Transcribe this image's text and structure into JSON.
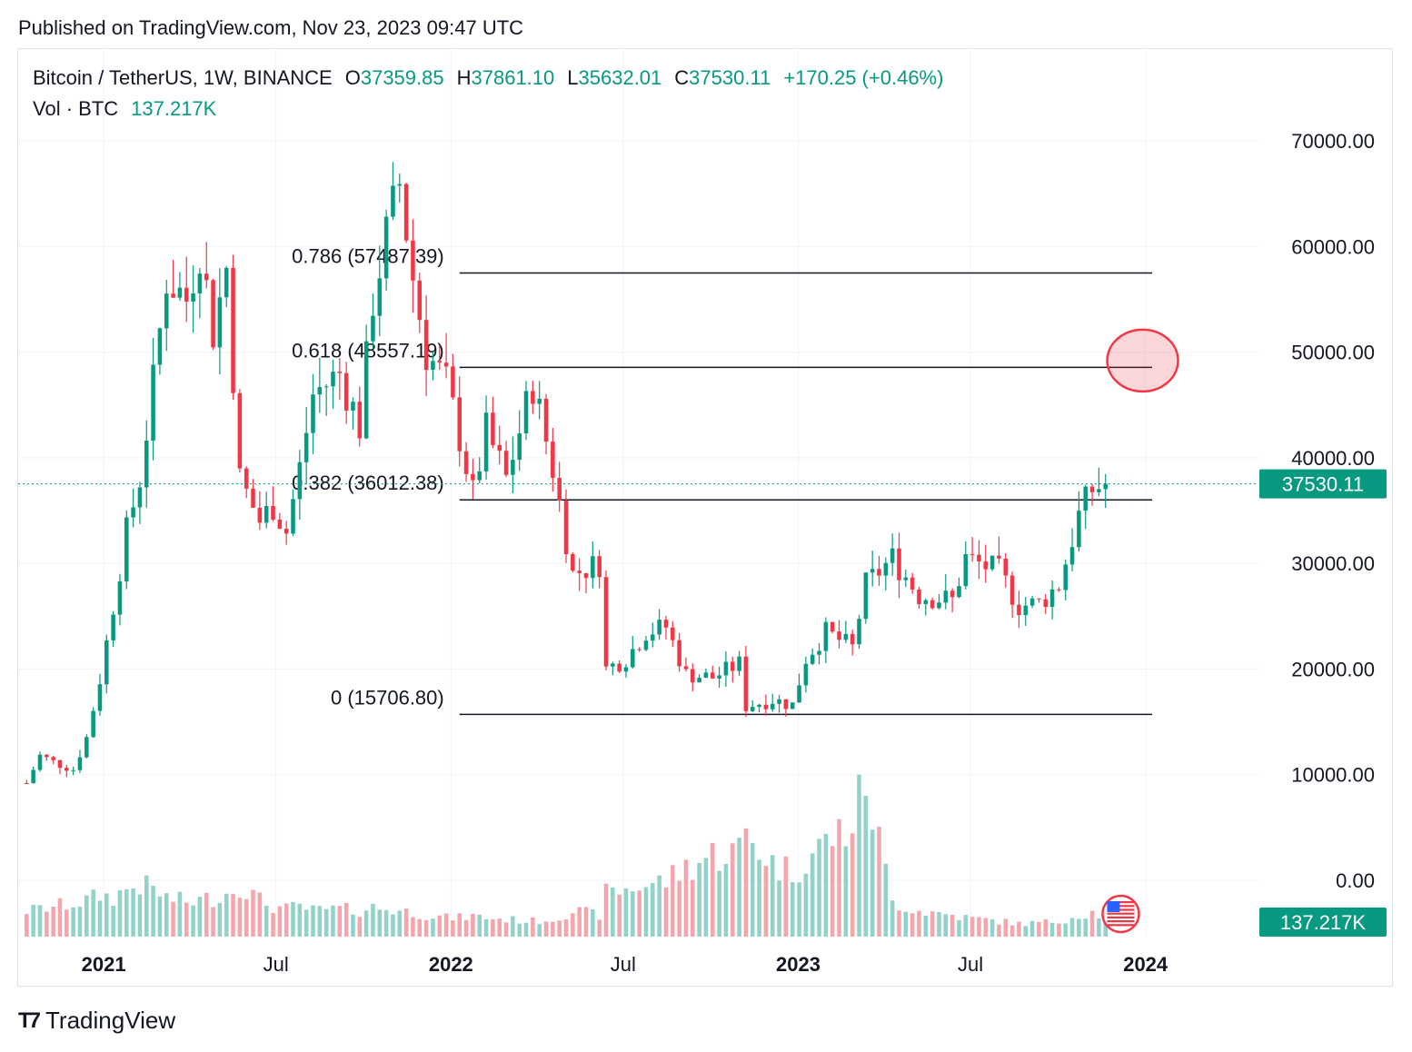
{
  "header": {
    "published": "Published on TradingView.com, Nov 23, 2023 09:47 UTC"
  },
  "legend": {
    "symbol": "Bitcoin / TetherUS, 1W, BINANCE",
    "open_label": "O",
    "open": "37359.85",
    "high_label": "H",
    "high": "37861.10",
    "low_label": "L",
    "low": "35632.01",
    "close_label": "C",
    "close": "37530.11",
    "change": "+170.25 (+0.46%)",
    "vol_label": "Vol · BTC",
    "vol_value": "137.217K"
  },
  "footer": {
    "brand": "TradingView",
    "logo_icon": "tradingview-logo-icon"
  },
  "colors": {
    "up": "#089981",
    "down": "#f23645",
    "up_vol": "#92d2c8",
    "down_vol": "#f5a6ac",
    "grid": "#f0f3fa",
    "last_price": "#089981"
  },
  "chart_data": {
    "type": "candlestick",
    "symbol": "BTCUSDT",
    "interval": "1W",
    "price_axis": {
      "ticks": [
        70000,
        60000,
        50000,
        40000,
        30000,
        20000,
        10000,
        0
      ],
      "tick_labels": [
        "70000.00",
        "60000.00",
        "50000.00",
        "40000.00",
        "30000.00",
        "20000.00",
        "10000.00",
        "0.00"
      ],
      "range": [
        -2400,
        75000
      ]
    },
    "time_axis": {
      "labels": [
        "2021",
        "Jul",
        "2022",
        "Jul",
        "2023",
        "Jul",
        "2024"
      ],
      "bold": [
        "2021",
        "2022",
        "2023",
        "2024"
      ],
      "dates": [
        "2021-01-01",
        "2021-07-01",
        "2022-01-01",
        "2022-07-01",
        "2023-01-01",
        "2023-07-01",
        "2024-01-01"
      ]
    },
    "last_price_label": "37530.11",
    "volume_label": "137.217K",
    "fib_levels": [
      {
        "ratio": "0.786",
        "price": 57487.39,
        "label": "0.786 (57487.39)"
      },
      {
        "ratio": "0.618",
        "price": 48557.19,
        "label": "0.618 (48557.19)"
      },
      {
        "ratio": "0.382",
        "price": 36012.38,
        "label": "0.382 (36012.38)"
      },
      {
        "ratio": "0",
        "price": 15706.8,
        "label": "0 (15706.80)"
      }
    ],
    "fib_range": {
      "start": "2022-01-10",
      "end": "2024-01-08"
    },
    "annotation": {
      "type": "ellipse",
      "price": 49200,
      "date": "2023-12-29",
      "color": "#f23645"
    },
    "event_icon": {
      "name": "us-flag-icon",
      "date": "2023-12-06"
    },
    "anchors": [
      {
        "date": "2020-10-12",
        "price": 9200,
        "vol": 30
      },
      {
        "date": "2020-10-26",
        "price": 11800,
        "vol": 32
      },
      {
        "date": "2020-11-09",
        "price": 11200,
        "vol": 35
      },
      {
        "date": "2020-11-30",
        "price": 10500,
        "vol": 38
      },
      {
        "date": "2020-12-14",
        "price": 13500,
        "vol": 42
      },
      {
        "date": "2020-12-28",
        "price": 19000,
        "vol": 48
      },
      {
        "date": "2021-01-11",
        "price": 26000,
        "vol": 45
      },
      {
        "date": "2021-01-25",
        "price": 33000,
        "vol": 55
      },
      {
        "date": "2021-02-08",
        "price": 38000,
        "vol": 60
      },
      {
        "date": "2021-02-22",
        "price": 47000,
        "vol": 55
      },
      {
        "date": "2021-03-08",
        "price": 57000,
        "vol": 45
      },
      {
        "date": "2021-03-29",
        "price": 55000,
        "vol": 40
      },
      {
        "date": "2021-04-12",
        "price": 60000,
        "vol": 42
      },
      {
        "date": "2021-04-26",
        "price": 52000,
        "vol": 45
      },
      {
        "date": "2021-05-10",
        "price": 58000,
        "vol": 50
      },
      {
        "date": "2021-05-24",
        "price": 38000,
        "vol": 60
      },
      {
        "date": "2021-06-14",
        "price": 34000,
        "vol": 42
      },
      {
        "date": "2021-06-28",
        "price": 35500,
        "vol": 35
      },
      {
        "date": "2021-07-12",
        "price": 33000,
        "vol": 32
      },
      {
        "date": "2021-07-26",
        "price": 39000,
        "vol": 35
      },
      {
        "date": "2021-08-09",
        "price": 46000,
        "vol": 30
      },
      {
        "date": "2021-09-06",
        "price": 48000,
        "vol": 32
      },
      {
        "date": "2021-09-27",
        "price": 43000,
        "vol": 30
      },
      {
        "date": "2021-10-11",
        "price": 55000,
        "vol": 34
      },
      {
        "date": "2021-10-25",
        "price": 61000,
        "vol": 32
      },
      {
        "date": "2021-11-08",
        "price": 66000,
        "vol": 30
      },
      {
        "date": "2021-11-22",
        "price": 57000,
        "vol": 28
      },
      {
        "date": "2021-12-06",
        "price": 50000,
        "vol": 25
      },
      {
        "date": "2021-12-27",
        "price": 47000,
        "vol": 22
      },
      {
        "date": "2022-01-10",
        "price": 42000,
        "vol": 22
      },
      {
        "date": "2022-01-24",
        "price": 36500,
        "vol": 24
      },
      {
        "date": "2022-02-07",
        "price": 42500,
        "vol": 22
      },
      {
        "date": "2022-02-28",
        "price": 38000,
        "vol": 20
      },
      {
        "date": "2022-03-28",
        "price": 47000,
        "vol": 18
      },
      {
        "date": "2022-04-18",
        "price": 39000,
        "vol": 20
      },
      {
        "date": "2022-05-09",
        "price": 29000,
        "vol": 30
      },
      {
        "date": "2022-06-06",
        "price": 30000,
        "vol": 25
      },
      {
        "date": "2022-06-13",
        "price": 20000,
        "vol": 50
      },
      {
        "date": "2022-07-04",
        "price": 21000,
        "vol": 55
      },
      {
        "date": "2022-07-25",
        "price": 23500,
        "vol": 60
      },
      {
        "date": "2022-08-15",
        "price": 24000,
        "vol": 65
      },
      {
        "date": "2022-09-05",
        "price": 19500,
        "vol": 80
      },
      {
        "date": "2022-10-03",
        "price": 19200,
        "vol": 95
      },
      {
        "date": "2022-10-31",
        "price": 20500,
        "vol": 100
      },
      {
        "date": "2022-11-07",
        "price": 16500,
        "vol": 120
      },
      {
        "date": "2022-12-05",
        "price": 17100,
        "vol": 85
      },
      {
        "date": "2022-12-26",
        "price": 16600,
        "vol": 75
      },
      {
        "date": "2023-01-09",
        "price": 21000,
        "vol": 90
      },
      {
        "date": "2023-01-30",
        "price": 23500,
        "vol": 110
      },
      {
        "date": "2023-02-27",
        "price": 22000,
        "vol": 130
      },
      {
        "date": "2023-03-13",
        "price": 28000,
        "vol": 180
      },
      {
        "date": "2023-04-10",
        "price": 30500,
        "vol": 40
      },
      {
        "date": "2023-05-08",
        "price": 27000,
        "vol": 30
      },
      {
        "date": "2023-06-12",
        "price": 26500,
        "vol": 25
      },
      {
        "date": "2023-06-26",
        "price": 30500,
        "vol": 22
      },
      {
        "date": "2023-07-31",
        "price": 29200,
        "vol": 18
      },
      {
        "date": "2023-08-21",
        "price": 26000,
        "vol": 15
      },
      {
        "date": "2023-09-11",
        "price": 26200,
        "vol": 16
      },
      {
        "date": "2023-10-02",
        "price": 28000,
        "vol": 18
      },
      {
        "date": "2023-10-23",
        "price": 34500,
        "vol": 25
      },
      {
        "date": "2023-11-06",
        "price": 37000,
        "vol": 28
      },
      {
        "date": "2023-11-20",
        "price": 37530.11,
        "vol": 22
      }
    ]
  }
}
